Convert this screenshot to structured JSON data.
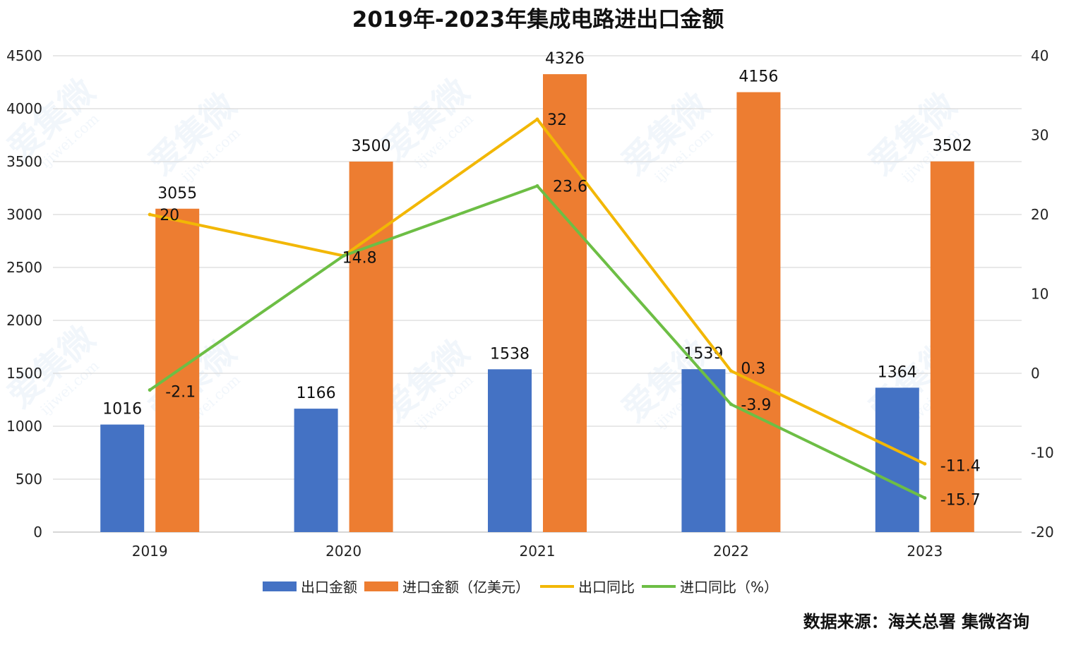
{
  "chart_data": {
    "type": "bar",
    "title": "2019年-2023年集成电路进出口金额",
    "categories": [
      "2019",
      "2020",
      "2021",
      "2022",
      "2023"
    ],
    "series": [
      {
        "name": "出口金额",
        "type": "bar",
        "axis": "left",
        "color": "#4472C4",
        "values": [
          1016,
          1166,
          1538,
          1539,
          1364
        ]
      },
      {
        "name": "进口金额（亿美元）",
        "type": "bar",
        "axis": "left",
        "color": "#ED7D31",
        "values": [
          3055,
          3500,
          4326,
          4156,
          3502
        ]
      },
      {
        "name": "出口同比",
        "type": "line",
        "axis": "right",
        "color": "#F2B705",
        "values": [
          20,
          14.8,
          32,
          0.3,
          -11.4
        ]
      },
      {
        "name": "进口同比（%）",
        "type": "line",
        "axis": "right",
        "color": "#6DBE45",
        "values": [
          -2.1,
          14.8,
          23.6,
          -3.9,
          -15.7
        ]
      }
    ],
    "left_axis": {
      "ylim": [
        0,
        4500
      ],
      "ticks": [
        0,
        500,
        1000,
        1500,
        2000,
        2500,
        3000,
        3500,
        4000,
        4500
      ]
    },
    "right_axis": {
      "ylim": [
        -20,
        40
      ],
      "ticks": [
        -20,
        -10,
        0,
        10,
        20,
        30,
        40
      ]
    },
    "data_labels": {
      "出口金额": [
        "1016",
        "1166",
        "1538",
        "1539",
        "1364"
      ],
      "进口金额（亿美元）": [
        "3055",
        "3500",
        "4326",
        "4156",
        "3502"
      ],
      "出口同比": [
        "20",
        "14.8",
        "32",
        "0.3",
        "-11.4"
      ],
      "进口同比（%）": [
        "-2.1",
        "",
        "23.6",
        "-3.9",
        "-15.7"
      ]
    },
    "grid": true,
    "legend_position": "bottom"
  },
  "source_note": "数据来源：海关总署 集微咨询",
  "watermark": {
    "brand": "爱集微",
    "site": "ijiwei.com"
  }
}
